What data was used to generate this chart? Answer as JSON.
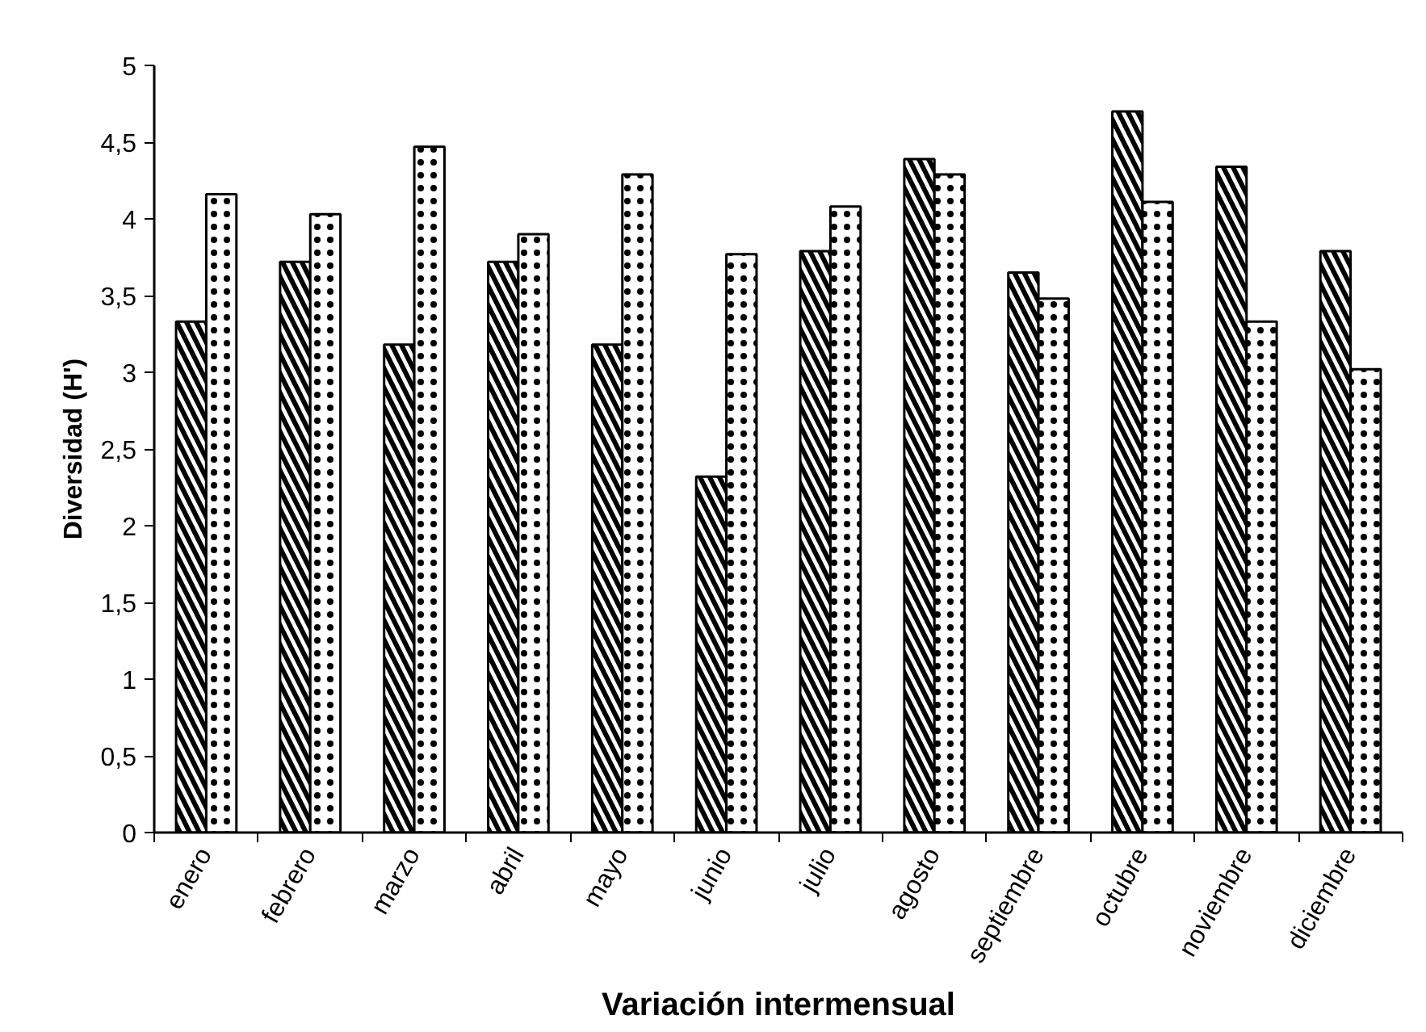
{
  "chart_data": {
    "type": "bar",
    "xlabel": "Variación intermensual",
    "ylabel": "Diversidad (H')",
    "categories": [
      "enero",
      "febrero",
      "marzo",
      "abril",
      "mayo",
      "junio",
      "julio",
      "agosto",
      "septiembre",
      "octubre",
      "noviembre",
      "diciembre"
    ],
    "series": [
      {
        "color": "#000000",
        "values": [
          3.33,
          3.72,
          3.18,
          3.72,
          3.18,
          2.32,
          3.79,
          4.39,
          3.65,
          4.7,
          4.34,
          3.79
        ]
      },
      {
        "color": "#000000",
        "values": [
          4.16,
          4.03,
          4.47,
          3.9,
          4.29,
          3.77,
          4.08,
          4.29,
          3.48,
          4.11,
          3.33,
          3.02
        ]
      }
    ],
    "ylim": [
      0,
      5
    ],
    "yticks": [
      0,
      {
        "value": 0.5,
        "label": "0,5"
      },
      1,
      {
        "value": 1.5,
        "label": "1,5"
      },
      2,
      {
        "value": 2.5,
        "label": "2,5"
      },
      3,
      {
        "value": 3.5,
        "label": "3,5"
      },
      4,
      {
        "value": 4.5,
        "label": "4,5"
      },
      5
    ],
    "grid": false
  }
}
